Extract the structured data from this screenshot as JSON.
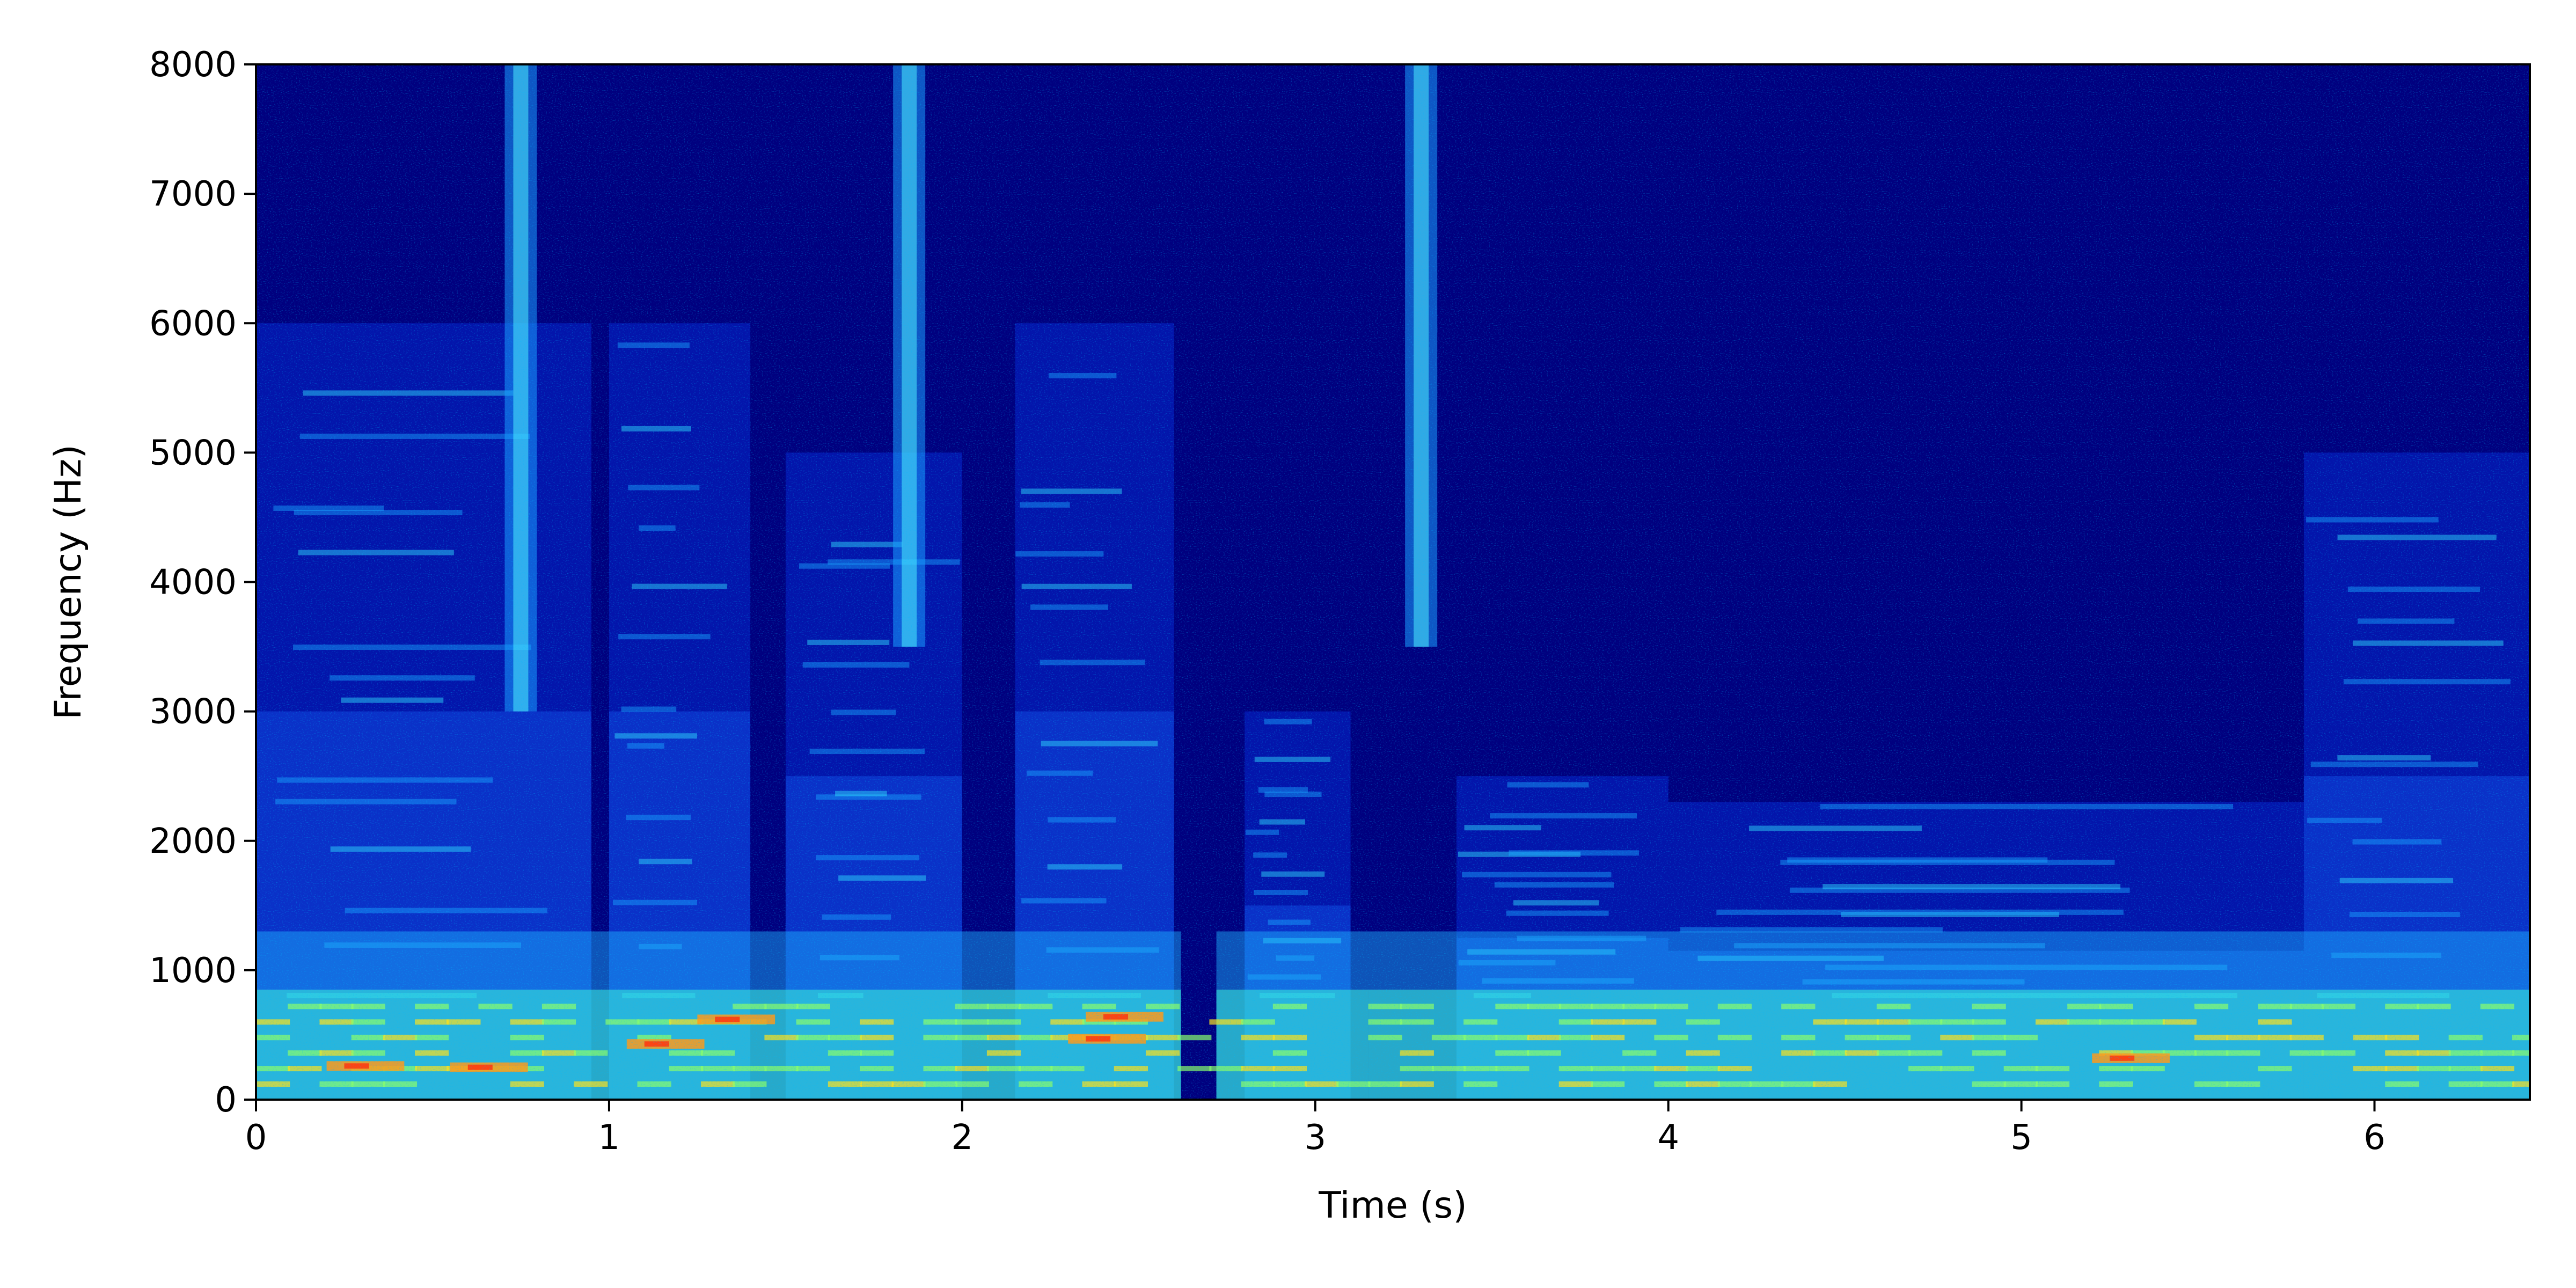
{
  "chart_data": {
    "type": "heatmap",
    "subtype": "spectrogram",
    "title": "",
    "xlabel": "Time (s)",
    "ylabel": "Frequency (Hz)",
    "xlim": [
      0,
      6.44
    ],
    "ylim": [
      0,
      8000
    ],
    "x_ticks": [
      0,
      1,
      2,
      3,
      4,
      5,
      6
    ],
    "x_tick_labels": [
      "0",
      "1",
      "2",
      "3",
      "4",
      "5",
      "6"
    ],
    "y_ticks": [
      0,
      1000,
      2000,
      3000,
      4000,
      5000,
      6000,
      7000,
      8000
    ],
    "y_tick_labels": [
      "0",
      "1000",
      "2000",
      "3000",
      "4000",
      "5000",
      "6000",
      "7000",
      "8000"
    ],
    "colormap": "jet",
    "background_color": "#00007f",
    "grid": false,
    "legend": "none",
    "energy_notes": "strongest energy below ~800 Hz across speech segments 0–2.6 s and 3.0–6.44 s; harmonic formant stripes up to ~6000 Hz in 0–2.6 s; broadband fricative streaks near 0.75 s, 1.85 s and 3.3 s reaching 8000 Hz",
    "speech_segments": [
      {
        "start": 0.0,
        "end": 0.95,
        "max_freq": 6000
      },
      {
        "start": 1.0,
        "end": 1.4,
        "max_freq": 6000
      },
      {
        "start": 1.5,
        "end": 2.0,
        "max_freq": 5000
      },
      {
        "start": 2.15,
        "end": 2.6,
        "max_freq": 6000
      },
      {
        "start": 2.8,
        "end": 3.1,
        "max_freq": 3000
      },
      {
        "start": 3.4,
        "end": 4.0,
        "max_freq": 2500
      },
      {
        "start": 4.0,
        "end": 5.8,
        "max_freq": 2300
      },
      {
        "start": 5.8,
        "end": 6.44,
        "max_freq": 5000
      }
    ],
    "fricatives": [
      {
        "time": 0.75,
        "min_freq": 3000,
        "max_freq": 8000
      },
      {
        "time": 1.85,
        "min_freq": 3500,
        "max_freq": 8000
      },
      {
        "time": 3.3,
        "min_freq": 3500,
        "max_freq": 8000
      }
    ]
  }
}
